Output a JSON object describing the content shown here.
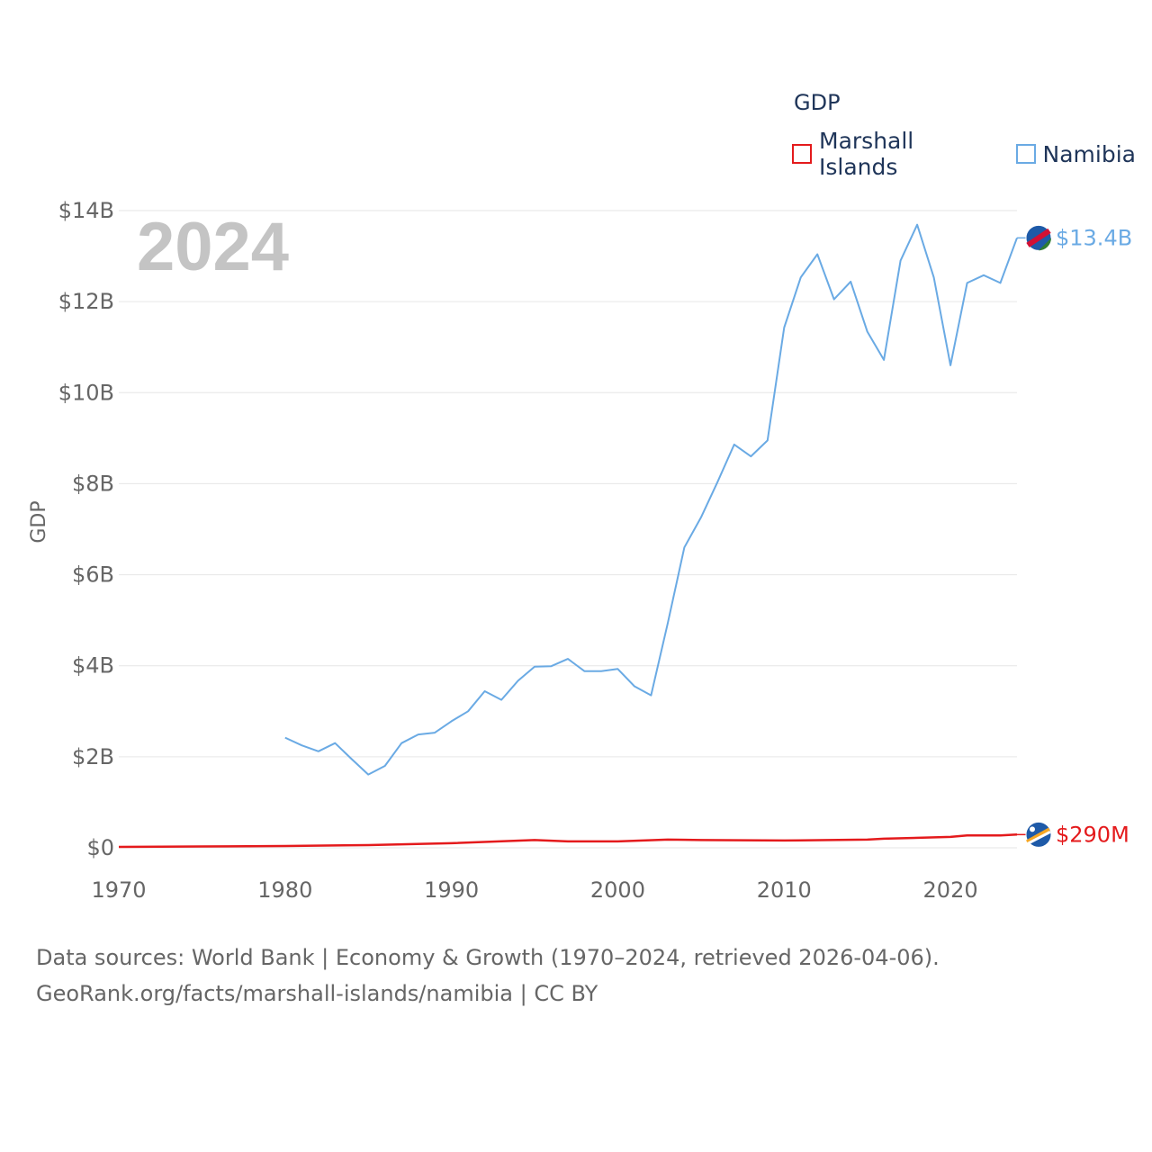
{
  "legend": {
    "title": "GDP",
    "items": [
      {
        "label": "Marshall Islands",
        "color": "#e41a1c"
      },
      {
        "label": "Namibia",
        "color": "#6aaae4"
      }
    ]
  },
  "footer": {
    "line1": "Data sources: World Bank | Economy & Growth (1970–2024, retrieved 2026-04-06).",
    "line2": "GeoRank.org/facts/marshall-islands/namibia | CC BY"
  },
  "chart_data": {
    "type": "line",
    "title": "GDP",
    "year_label": "2024",
    "xlabel": "",
    "ylabel": "GDP",
    "xlim": [
      1970,
      2024
    ],
    "ylim": [
      0,
      14
    ],
    "y_unit": "billion USD",
    "x_ticks": [
      1970,
      1980,
      1990,
      2000,
      2010,
      2020
    ],
    "x_tick_labels": [
      "1970",
      "1980",
      "1990",
      "2000",
      "2010",
      "2020"
    ],
    "y_ticks": [
      0,
      2,
      4,
      6,
      8,
      10,
      12,
      14
    ],
    "y_tick_labels": [
      "$0",
      "$2B",
      "$4B",
      "$6B",
      "$8B",
      "$10B",
      "$12B",
      "$14B"
    ],
    "series": [
      {
        "name": "Marshall Islands",
        "color": "#e41a1c",
        "end_label": "$290M",
        "x": [
          1970,
          1975,
          1980,
          1985,
          1990,
          1995,
          1997,
          2000,
          2003,
          2005,
          2010,
          2015,
          2016,
          2020,
          2021,
          2023,
          2024
        ],
        "values": [
          0.02,
          0.03,
          0.04,
          0.06,
          0.1,
          0.17,
          0.14,
          0.14,
          0.18,
          0.17,
          0.16,
          0.18,
          0.2,
          0.24,
          0.27,
          0.27,
          0.29
        ]
      },
      {
        "name": "Namibia",
        "color": "#6aaae4",
        "end_label": "$13.4B",
        "x": [
          1980,
          1981,
          1982,
          1983,
          1984,
          1985,
          1986,
          1987,
          1988,
          1989,
          1990,
          1991,
          1992,
          1993,
          1994,
          1995,
          1996,
          1997,
          1998,
          1999,
          2000,
          2001,
          2002,
          2003,
          2004,
          2005,
          2006,
          2007,
          2008,
          2009,
          2010,
          2011,
          2012,
          2013,
          2014,
          2015,
          2016,
          2017,
          2018,
          2019,
          2020,
          2021,
          2022,
          2023,
          2024
        ],
        "values": [
          2.42,
          2.25,
          2.12,
          2.3,
          1.95,
          1.61,
          1.8,
          2.3,
          2.49,
          2.53,
          2.78,
          3.0,
          3.44,
          3.25,
          3.67,
          3.98,
          3.99,
          4.15,
          3.88,
          3.88,
          3.93,
          3.55,
          3.35,
          4.93,
          6.6,
          7.26,
          8.04,
          8.86,
          8.6,
          8.95,
          11.43,
          12.53,
          13.04,
          12.05,
          12.44,
          11.34,
          10.72,
          12.9,
          13.69,
          12.53,
          10.6,
          12.41,
          12.58,
          12.41,
          13.4
        ]
      }
    ]
  }
}
